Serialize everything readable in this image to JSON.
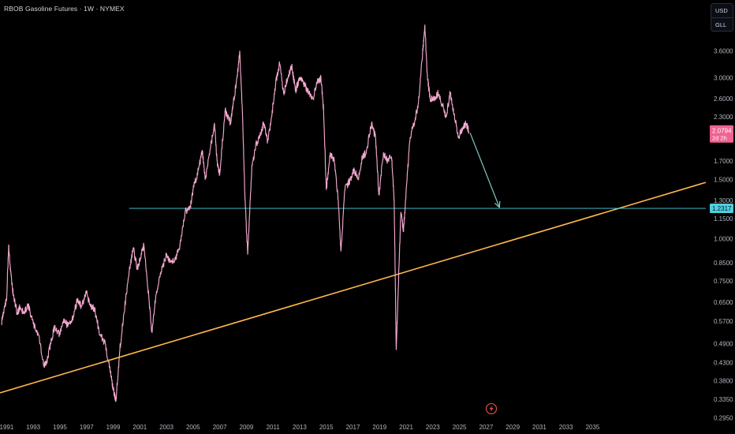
{
  "header": {
    "title": "RBOB Gasoline Futures · 1W · NYMEX"
  },
  "currency_selector": {
    "currency": "USD",
    "unit": "GLL"
  },
  "chart_data": {
    "type": "line",
    "symbol": "RBOB Gasoline Futures",
    "interval": "1W",
    "exchange": "NYMEX",
    "y_scale": "log",
    "ylim": [
      0.285,
      5.1
    ],
    "xlim": [
      1990.5,
      2043.5
    ],
    "y_ticks": [
      "3.6000",
      "3.0000",
      "2.6000",
      "2.3000",
      "1.7000",
      "1.5000",
      "1.3000",
      "1.1500",
      "1.0000",
      "0.8500",
      "0.7500",
      "0.6500",
      "0.5700",
      "0.4900",
      "0.4300",
      "0.3800",
      "0.3350",
      "0.2950"
    ],
    "x_ticks": [
      "1991",
      "1993",
      "1995",
      "1997",
      "1999",
      "2001",
      "2003",
      "2005",
      "2007",
      "2009",
      "2011",
      "2013",
      "2015",
      "2017",
      "2019",
      "2021",
      "2023",
      "2025",
      "2027",
      "2029",
      "2031",
      "2033",
      "2035"
    ],
    "series": [
      {
        "color": "#f3a9cf",
        "points": [
          [
            1990.6,
            0.56
          ],
          [
            1990.8,
            0.62
          ],
          [
            1991.0,
            0.66
          ],
          [
            1991.15,
            0.96
          ],
          [
            1991.3,
            0.8
          ],
          [
            1991.5,
            0.68
          ],
          [
            1991.8,
            0.6
          ],
          [
            1992.0,
            0.63
          ],
          [
            1992.3,
            0.6
          ],
          [
            1992.6,
            0.64
          ],
          [
            1993.0,
            0.56
          ],
          [
            1993.4,
            0.52
          ],
          [
            1993.8,
            0.42
          ],
          [
            1994.0,
            0.43
          ],
          [
            1994.3,
            0.49
          ],
          [
            1994.6,
            0.55
          ],
          [
            1995.0,
            0.52
          ],
          [
            1995.3,
            0.58
          ],
          [
            1995.6,
            0.55
          ],
          [
            1996.0,
            0.59
          ],
          [
            1996.3,
            0.66
          ],
          [
            1996.6,
            0.63
          ],
          [
            1997.0,
            0.69
          ],
          [
            1997.3,
            0.63
          ],
          [
            1997.6,
            0.62
          ],
          [
            1998.0,
            0.52
          ],
          [
            1998.4,
            0.49
          ],
          [
            1998.8,
            0.4
          ],
          [
            1999.0,
            0.36
          ],
          [
            1999.2,
            0.33
          ],
          [
            1999.5,
            0.47
          ],
          [
            1999.8,
            0.6
          ],
          [
            2000.2,
            0.8
          ],
          [
            2000.5,
            0.94
          ],
          [
            2000.8,
            0.82
          ],
          [
            2001.0,
            0.86
          ],
          [
            2001.3,
            0.96
          ],
          [
            2001.6,
            0.72
          ],
          [
            2001.9,
            0.53
          ],
          [
            2002.2,
            0.68
          ],
          [
            2002.6,
            0.8
          ],
          [
            2003.0,
            0.9
          ],
          [
            2003.3,
            0.85
          ],
          [
            2003.7,
            0.88
          ],
          [
            2004.0,
            0.95
          ],
          [
            2004.4,
            1.2
          ],
          [
            2004.8,
            1.25
          ],
          [
            2005.0,
            1.4
          ],
          [
            2005.4,
            1.6
          ],
          [
            2005.7,
            1.82
          ],
          [
            2005.9,
            1.5
          ],
          [
            2006.3,
            1.85
          ],
          [
            2006.6,
            2.2
          ],
          [
            2006.8,
            1.7
          ],
          [
            2007.0,
            1.55
          ],
          [
            2007.4,
            2.4
          ],
          [
            2007.8,
            2.2
          ],
          [
            2008.0,
            2.5
          ],
          [
            2008.3,
            3.0
          ],
          [
            2008.5,
            3.6
          ],
          [
            2008.7,
            2.4
          ],
          [
            2008.9,
            1.3
          ],
          [
            2009.1,
            0.9
          ],
          [
            2009.4,
            1.6
          ],
          [
            2009.7,
            1.9
          ],
          [
            2010.0,
            2.0
          ],
          [
            2010.3,
            2.2
          ],
          [
            2010.6,
            1.95
          ],
          [
            2010.9,
            2.3
          ],
          [
            2011.2,
            2.9
          ],
          [
            2011.5,
            3.3
          ],
          [
            2011.8,
            2.7
          ],
          [
            2012.1,
            3.0
          ],
          [
            2012.4,
            3.25
          ],
          [
            2012.7,
            2.75
          ],
          [
            2013.0,
            3.0
          ],
          [
            2013.3,
            2.9
          ],
          [
            2013.6,
            2.75
          ],
          [
            2014.0,
            2.6
          ],
          [
            2014.3,
            2.9
          ],
          [
            2014.6,
            3.0
          ],
          [
            2014.8,
            2.4
          ],
          [
            2015.0,
            1.4
          ],
          [
            2015.3,
            1.8
          ],
          [
            2015.6,
            1.7
          ],
          [
            2015.9,
            1.3
          ],
          [
            2016.1,
            0.92
          ],
          [
            2016.4,
            1.4
          ],
          [
            2016.8,
            1.5
          ],
          [
            2017.1,
            1.6
          ],
          [
            2017.4,
            1.5
          ],
          [
            2017.7,
            1.75
          ],
          [
            2018.0,
            1.8
          ],
          [
            2018.4,
            2.2
          ],
          [
            2018.7,
            2.0
          ],
          [
            2018.95,
            1.35
          ],
          [
            2019.3,
            1.8
          ],
          [
            2019.6,
            1.7
          ],
          [
            2019.9,
            1.75
          ],
          [
            2020.1,
            1.3
          ],
          [
            2020.25,
            0.47
          ],
          [
            2020.4,
            0.7
          ],
          [
            2020.6,
            1.2
          ],
          [
            2020.8,
            1.05
          ],
          [
            2021.0,
            1.4
          ],
          [
            2021.3,
            2.0
          ],
          [
            2021.6,
            2.2
          ],
          [
            2021.9,
            2.5
          ],
          [
            2022.2,
            3.4
          ],
          [
            2022.4,
            4.3
          ],
          [
            2022.6,
            3.0
          ],
          [
            2022.8,
            2.6
          ],
          [
            2023.1,
            2.6
          ],
          [
            2023.4,
            2.7
          ],
          [
            2023.7,
            2.5
          ],
          [
            2024.0,
            2.3
          ],
          [
            2024.3,
            2.7
          ],
          [
            2024.6,
            2.35
          ],
          [
            2024.9,
            2.0
          ],
          [
            2025.2,
            2.1
          ],
          [
            2025.5,
            2.2
          ],
          [
            2025.7,
            2.08
          ]
        ]
      }
    ],
    "horizontal_level": {
      "value": 1.2317,
      "label": "1.2317",
      "color": "#4dd0e1",
      "x_start": 2000.2
    },
    "trendline": {
      "color": "#ffb74d",
      "points": [
        [
          1990.5,
          0.35
        ],
        [
          2043.5,
          1.47
        ]
      ]
    },
    "projection_arrow": {
      "color": "#80cbc4",
      "from": [
        2025.8,
        2.06
      ],
      "to": [
        2028.0,
        1.24
      ]
    },
    "last_price": {
      "value": 2.0794,
      "label": "2.0794",
      "countdown": "2d 2h",
      "color": "#f06292"
    }
  }
}
